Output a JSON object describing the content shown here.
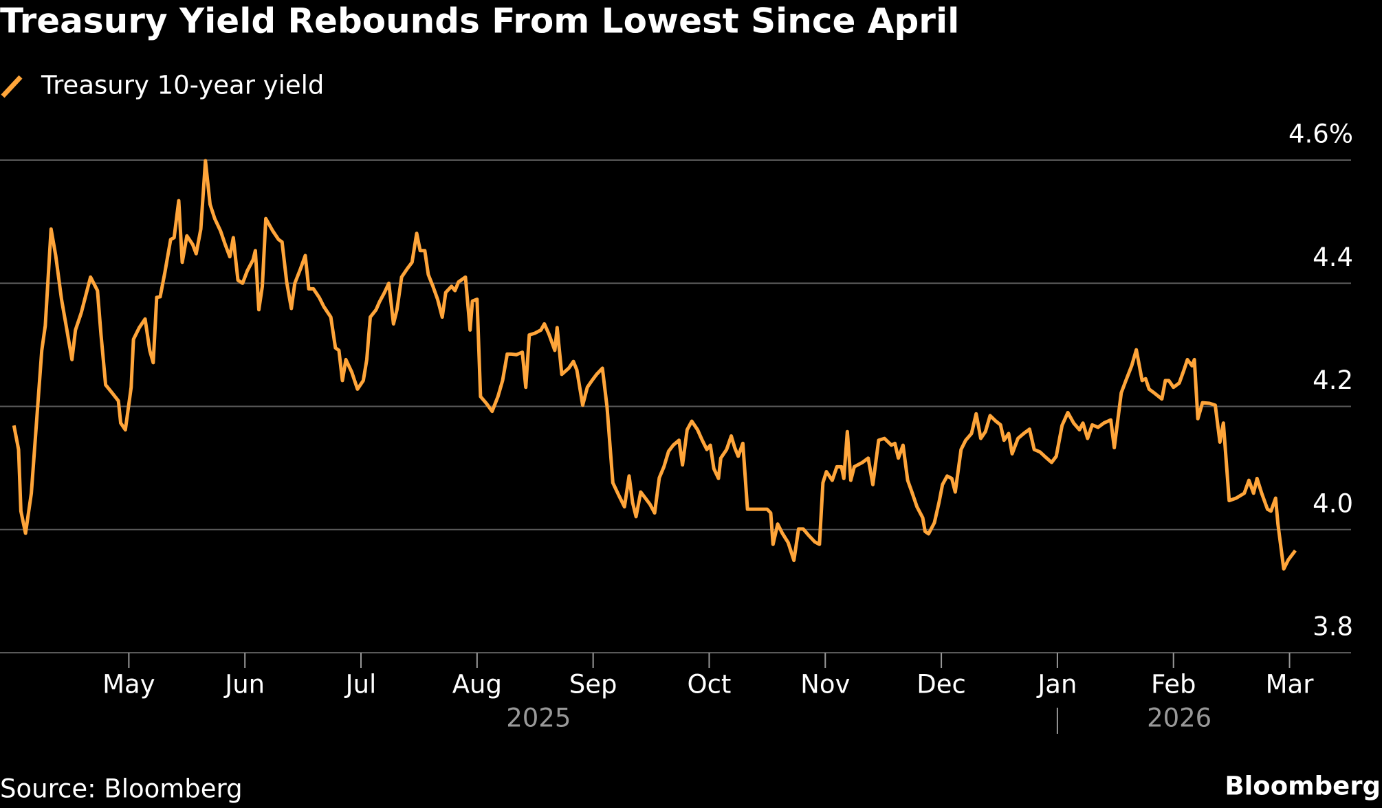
{
  "chart_data": {
    "type": "line",
    "title": "Treasury Yield Rebounds From Lowest Since April",
    "source": "Source: Bloomberg",
    "brand": "Bloomberg",
    "grid": true,
    "xlim": [
      3.89,
      15.53
    ],
    "ylim": [
      3.8,
      4.6
    ],
    "yticks": [
      3.8,
      {
        "value": 4.0,
        "label": "4.0"
      },
      4.2,
      4.4,
      {
        "value": 4.6,
        "label": "4.6%"
      }
    ],
    "xticks": [
      {
        "value": 5,
        "label": "May"
      },
      {
        "value": 6,
        "label": "Jun"
      },
      {
        "value": 7,
        "label": "Jul"
      },
      {
        "value": 8,
        "label": "Aug"
      },
      {
        "value": 9,
        "label": "Sep"
      },
      {
        "value": 10,
        "label": "Oct"
      },
      {
        "value": 11,
        "label": "Nov"
      },
      {
        "value": 12,
        "label": "Dec"
      },
      {
        "value": 13,
        "label": "Jan"
      },
      {
        "value": 14,
        "label": "Feb"
      },
      {
        "value": 15,
        "label": "Mar"
      }
    ],
    "year_labels": [
      {
        "value": 8.53,
        "label": "2025"
      },
      {
        "value": 14.05,
        "label": "2026"
      }
    ],
    "x": [
      4.01,
      4.05,
      4.07,
      4.11,
      4.16,
      4.21,
      4.25,
      4.28,
      4.33,
      4.37,
      4.42,
      4.46,
      4.51,
      4.54,
      4.59,
      4.63,
      4.67,
      4.73,
      4.76,
      4.8,
      4.86,
      4.91,
      4.93,
      4.97,
      5.02,
      5.04,
      5.09,
      5.14,
      5.18,
      5.21,
      5.24,
      5.27,
      5.31,
      5.36,
      5.39,
      5.43,
      5.46,
      5.5,
      5.55,
      5.58,
      5.62,
      5.66,
      5.7,
      5.74,
      5.79,
      5.83,
      5.87,
      5.9,
      5.94,
      5.98,
      6.02,
      6.07,
      6.09,
      6.12,
      6.15,
      6.18,
      6.24,
      6.29,
      6.32,
      6.36,
      6.4,
      6.43,
      6.48,
      6.52,
      6.55,
      6.59,
      6.64,
      6.68,
      6.74,
      6.78,
      6.81,
      6.84,
      6.87,
      6.92,
      6.97,
      7.02,
      7.05,
      7.08,
      7.13,
      7.16,
      7.2,
      7.24,
      7.28,
      7.31,
      7.35,
      7.4,
      7.44,
      7.48,
      7.51,
      7.55,
      7.58,
      7.62,
      7.66,
      7.7,
      7.73,
      7.78,
      7.81,
      7.84,
      7.9,
      7.94,
      7.96,
      8.0,
      8.03,
      8.08,
      8.13,
      8.18,
      8.22,
      8.26,
      8.29,
      8.34,
      8.39,
      8.42,
      8.45,
      8.5,
      8.55,
      8.58,
      8.62,
      8.67,
      8.69,
      8.73,
      8.79,
      8.83,
      8.86,
      8.91,
      8.95,
      8.99,
      9.03,
      9.08,
      9.12,
      9.17,
      9.22,
      9.27,
      9.31,
      9.34,
      9.37,
      9.41,
      9.45,
      9.49,
      9.53,
      9.57,
      9.61,
      9.65,
      9.69,
      9.74,
      9.77,
      9.81,
      9.85,
      9.9,
      9.94,
      9.98,
      10.01,
      10.04,
      10.08,
      10.1,
      10.15,
      10.19,
      10.22,
      10.25,
      10.29,
      10.33,
      10.38,
      10.43,
      10.5,
      10.53,
      10.55,
      10.59,
      10.63,
      10.68,
      10.73,
      10.77,
      10.81,
      10.86,
      10.91,
      10.95,
      10.98,
      11.01,
      11.06,
      11.1,
      11.14,
      11.16,
      11.19,
      11.22,
      11.25,
      11.32,
      11.37,
      11.41,
      11.46,
      11.51,
      11.57,
      11.6,
      11.63,
      11.67,
      11.71,
      11.75,
      11.79,
      11.84,
      11.86,
      11.89,
      11.94,
      11.98,
      12.01,
      12.05,
      12.09,
      12.12,
      12.17,
      12.21,
      12.26,
      12.3,
      12.34,
      12.38,
      12.42,
      12.47,
      12.51,
      12.54,
      12.58,
      12.61,
      12.66,
      12.71,
      12.76,
      12.8,
      12.85,
      12.89,
      12.95,
      12.99,
      13.04,
      13.09,
      13.14,
      13.19,
      13.22,
      13.26,
      13.3,
      13.35,
      13.4,
      13.46,
      13.49,
      13.55,
      13.59,
      13.64,
      13.68,
      13.73,
      13.76,
      13.79,
      13.84,
      13.9,
      13.93,
      13.96,
      14.0,
      14.05,
      14.09,
      14.12,
      14.16,
      14.18,
      14.21,
      14.25,
      14.31,
      14.36,
      14.4,
      14.43,
      14.48,
      14.54,
      14.61,
      14.65,
      14.69,
      14.72,
      14.76,
      14.81,
      14.84,
      14.88,
      14.9,
      14.95,
      14.99,
      15.05
    ],
    "series": [
      {
        "name": "Treasury 10-year yield",
        "color": "#ffa53a",
        "values": [
          4.169,
          4.13,
          4.03,
          3.994,
          4.059,
          4.188,
          4.291,
          4.331,
          4.488,
          4.445,
          4.374,
          4.331,
          4.276,
          4.324,
          4.352,
          4.381,
          4.41,
          4.388,
          4.317,
          4.235,
          4.221,
          4.209,
          4.173,
          4.162,
          4.231,
          4.309,
          4.328,
          4.342,
          4.291,
          4.271,
          4.377,
          4.378,
          4.417,
          4.471,
          4.474,
          4.534,
          4.434,
          4.477,
          4.463,
          4.448,
          4.488,
          4.599,
          4.528,
          4.505,
          4.485,
          4.463,
          4.443,
          4.474,
          4.405,
          4.4,
          4.42,
          4.438,
          4.453,
          4.357,
          4.395,
          4.505,
          4.485,
          4.471,
          4.467,
          4.402,
          4.359,
          4.4,
          4.424,
          4.445,
          4.391,
          4.391,
          4.377,
          4.362,
          4.345,
          4.295,
          4.291,
          4.242,
          4.276,
          4.256,
          4.228,
          4.242,
          4.276,
          4.345,
          4.357,
          4.37,
          4.384,
          4.4,
          4.334,
          4.357,
          4.41,
          4.424,
          4.434,
          4.481,
          4.453,
          4.453,
          4.414,
          4.395,
          4.374,
          4.345,
          4.385,
          4.395,
          4.388,
          4.402,
          4.41,
          4.324,
          4.371,
          4.374,
          4.216,
          4.205,
          4.192,
          4.216,
          4.242,
          4.285,
          4.285,
          4.284,
          4.288,
          4.231,
          4.316,
          4.319,
          4.324,
          4.334,
          4.317,
          4.291,
          4.328,
          4.252,
          4.262,
          4.273,
          4.259,
          4.202,
          4.231,
          4.242,
          4.252,
          4.262,
          4.199,
          4.076,
          4.056,
          4.037,
          4.087,
          4.044,
          4.021,
          4.061,
          4.051,
          4.041,
          4.027,
          4.084,
          4.102,
          4.127,
          4.137,
          4.145,
          4.105,
          4.162,
          4.176,
          4.162,
          4.145,
          4.13,
          4.137,
          4.099,
          4.083,
          4.116,
          4.13,
          4.152,
          4.133,
          4.119,
          4.14,
          4.033,
          4.033,
          4.033,
          4.033,
          4.027,
          3.976,
          4.009,
          3.994,
          3.979,
          3.95,
          4.001,
          4.001,
          3.99,
          3.98,
          3.976,
          4.076,
          4.094,
          4.08,
          4.102,
          4.102,
          4.083,
          4.159,
          4.08,
          4.102,
          4.109,
          4.116,
          4.073,
          4.145,
          4.148,
          4.137,
          4.14,
          4.116,
          4.137,
          4.08,
          4.059,
          4.037,
          4.019,
          3.997,
          3.993,
          4.011,
          4.044,
          4.073,
          4.087,
          4.083,
          4.061,
          4.13,
          4.145,
          4.156,
          4.188,
          4.148,
          4.159,
          4.185,
          4.176,
          4.17,
          4.145,
          4.156,
          4.123,
          4.148,
          4.156,
          4.163,
          4.13,
          4.126,
          4.119,
          4.109,
          4.119,
          4.169,
          4.19,
          4.173,
          4.162,
          4.173,
          4.148,
          4.17,
          4.166,
          4.173,
          4.178,
          4.133,
          4.222,
          4.242,
          4.266,
          4.292,
          4.242,
          4.245,
          4.228,
          4.221,
          4.212,
          4.242,
          4.242,
          4.231,
          4.238,
          4.259,
          4.276,
          4.266,
          4.276,
          4.18,
          4.206,
          4.205,
          4.202,
          4.142,
          4.173,
          4.047,
          4.051,
          4.059,
          4.08,
          4.059,
          4.083,
          4.059,
          4.033,
          4.03,
          4.051,
          4.009,
          3.936,
          3.951,
          3.966
        ]
      }
    ]
  }
}
